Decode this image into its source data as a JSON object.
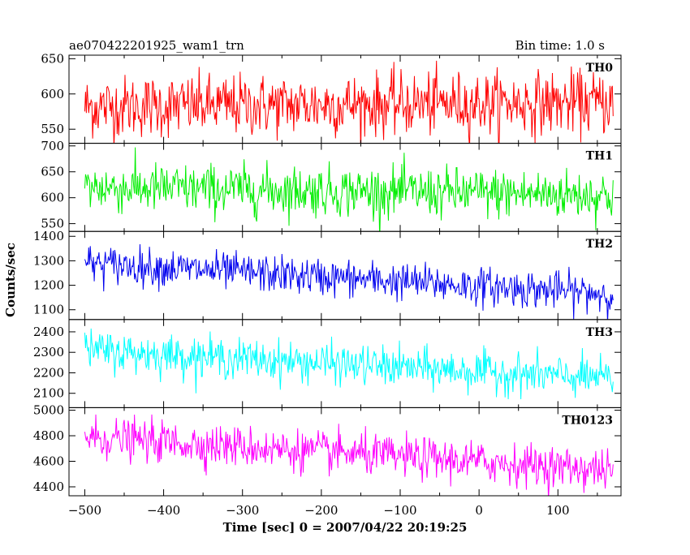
{
  "header": {
    "left_title": "ae070422201925_wam1_trn",
    "right_title": "Bin time: 1.0 s"
  },
  "axes": {
    "xlabel": "Time [sec] 0 = 2007/04/22 20:19:25",
    "ylabel": "Counts/sec"
  },
  "chart_data": {
    "type": "line",
    "title": "ae070422201925_wam1_trn",
    "subtitle": "Bin time: 1.0 s",
    "xlabel": "Time [sec] 0 = 2007/04/22 20:19:25",
    "ylabel": "Counts/sec",
    "xlim": [
      -520,
      180
    ],
    "x_range": [
      -500,
      170
    ],
    "x_ticks": [
      -500,
      -400,
      -300,
      -200,
      -100,
      0,
      100
    ],
    "x_tick_labels": [
      "−500",
      "−400",
      "−300",
      "−200",
      "−100",
      "0",
      "100"
    ],
    "grid": false,
    "panels": [
      {
        "name": "TH0",
        "color": "#ff0000",
        "ylim": [
          530,
          655
        ],
        "y_ticks": [
          550,
          600,
          650
        ],
        "y_tick_labels": [
          "550",
          "600",
          "650"
        ],
        "mean_start": 582,
        "mean_end": 588,
        "noise_amplitude": 22
      },
      {
        "name": "TH1",
        "color": "#00ee00",
        "ylim": [
          535,
          705
        ],
        "y_ticks": [
          550,
          600,
          650,
          700
        ],
        "y_tick_labels": [
          "550",
          "600",
          "650",
          "700"
        ],
        "mean_start": 620,
        "mean_end": 605,
        "noise_amplitude": 24
      },
      {
        "name": "TH2",
        "color": "#0000ee",
        "ylim": [
          1060,
          1420
        ],
        "y_ticks": [
          1100,
          1200,
          1300,
          1400
        ],
        "y_tick_labels": [
          "1100",
          "1200",
          "1300",
          "1400"
        ],
        "mean_start": 1290,
        "mean_end": 1165,
        "noise_amplitude": 38
      },
      {
        "name": "TH3",
        "color": "#00ffff",
        "ylim": [
          2030,
          2460
        ],
        "y_ticks": [
          2100,
          2200,
          2300,
          2400
        ],
        "y_tick_labels": [
          "2100",
          "2200",
          "2300",
          "2400"
        ],
        "mean_start": 2310,
        "mean_end": 2170,
        "noise_amplitude": 48
      },
      {
        "name": "TH0123",
        "color": "#ff00ff",
        "ylim": [
          4330,
          5020
        ],
        "y_ticks": [
          4400,
          4600,
          4800,
          5000
        ],
        "y_tick_labels": [
          "4400",
          "4600",
          "4800",
          "5000"
        ],
        "mean_start": 4790,
        "mean_end": 4530,
        "noise_amplitude": 80
      }
    ]
  }
}
